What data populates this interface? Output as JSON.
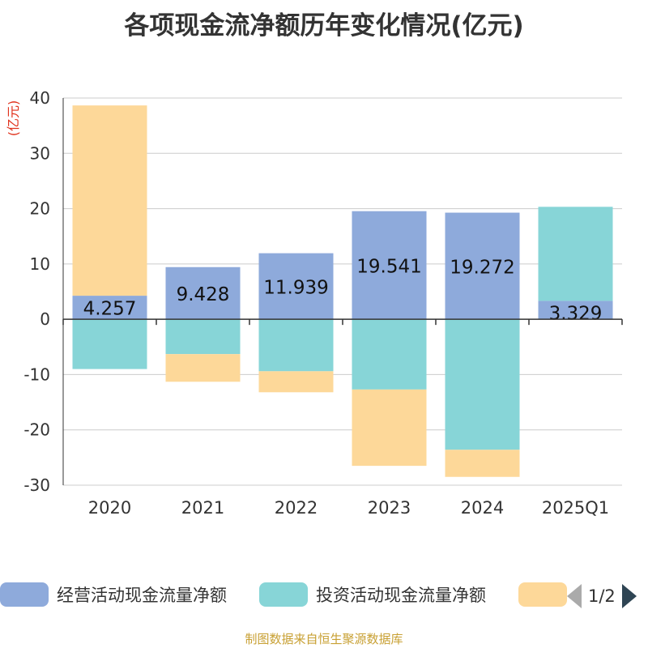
{
  "title": "各项现金流净额历年变化情况(亿元)",
  "source_note": "制图数据来自恒生聚源数据库",
  "legend_pager": "1/2",
  "chart_data": {
    "type": "bar",
    "stacked": true,
    "categories": [
      "2020",
      "2021",
      "2022",
      "2023",
      "2024",
      "2025Q1"
    ],
    "ylabel": "(亿元)",
    "ylim": [
      -30,
      40
    ],
    "yticks": [
      40,
      30,
      20,
      10,
      0,
      -10,
      -20,
      -30
    ],
    "grid": true,
    "legend_position": "bottom",
    "series": [
      {
        "name": "经营活动现金流量净额",
        "color": "#8eaadb",
        "values": [
          4.257,
          9.428,
          11.939,
          19.541,
          19.272,
          3.329
        ],
        "labels": [
          "4.257",
          "9.428",
          "11.939",
          "19.541",
          "19.272",
          "3.329"
        ]
      },
      {
        "name": "投资活动现金流量净额",
        "color": "#87d5d7",
        "values": [
          -9.0,
          -6.3,
          -9.4,
          -12.7,
          -23.6,
          17.0
        ]
      },
      {
        "name": "",
        "color": "#fdd899",
        "values": [
          34.4,
          -5.0,
          -3.8,
          -13.8,
          -4.9,
          0
        ]
      }
    ]
  }
}
